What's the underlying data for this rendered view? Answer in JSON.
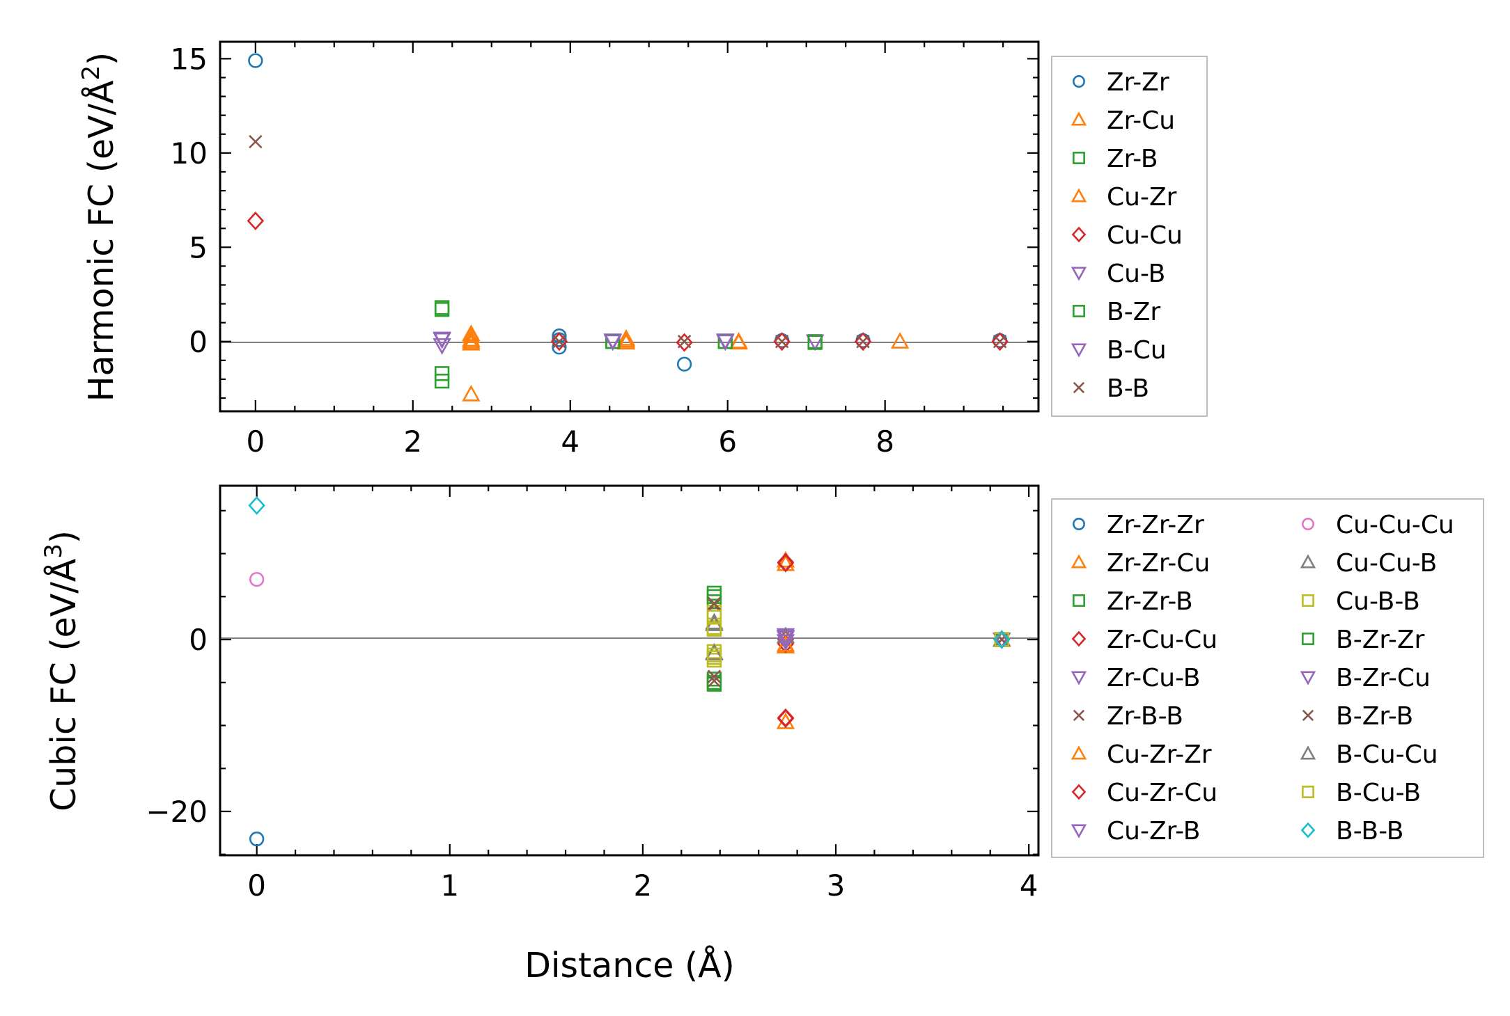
{
  "chart_data": [
    {
      "type": "scatter",
      "ylabel": "Harmonic FC (eV/Å²)",
      "ylabel_main": "Harmonic FC (eV/Å",
      "ylabel_sup": "2",
      "ylabel_tail": ")",
      "xlabel": "",
      "xlim": [
        -0.45,
        9.95
      ],
      "ylim": [
        -3.7,
        15.9
      ],
      "xticks": [
        0,
        2,
        4,
        6,
        8
      ],
      "xtick_labels": [
        "0",
        "2",
        "4",
        "6",
        "8"
      ],
      "yticks": [
        0,
        5,
        10,
        15
      ],
      "ytick_labels": [
        "0",
        "5",
        "10",
        "15"
      ],
      "zero_line": true,
      "legend_position": "outside-right",
      "series": [
        {
          "name": "Zr-Zr",
          "marker": "circle",
          "color": "#1f77b4",
          "points": [
            [
              0,
              14.9
            ],
            [
              3.86,
              0.3
            ],
            [
              3.86,
              -0.3
            ],
            [
              3.86,
              0.1
            ],
            [
              5.45,
              -1.2
            ],
            [
              6.69,
              0.05
            ],
            [
              7.72,
              0.05
            ],
            [
              9.46,
              0.05
            ]
          ]
        },
        {
          "name": "Zr-Cu",
          "marker": "triangle-up",
          "color": "#ff7f0e",
          "points": [
            [
              2.74,
              0.4
            ],
            [
              2.74,
              0.1
            ],
            [
              2.74,
              -0.1
            ],
            [
              2.74,
              -2.8
            ],
            [
              4.71,
              0.15
            ],
            [
              4.71,
              -0.05
            ],
            [
              6.14,
              0.0
            ],
            [
              8.19,
              0.0
            ]
          ]
        },
        {
          "name": "Zr-B",
          "marker": "square",
          "color": "#2ca02c",
          "points": [
            [
              2.37,
              1.8
            ],
            [
              2.37,
              -1.7
            ],
            [
              2.37,
              -2.1
            ],
            [
              4.54,
              0.0
            ],
            [
              5.97,
              0.0
            ],
            [
              7.11,
              0.0
            ]
          ]
        },
        {
          "name": "Cu-Zr",
          "marker": "triangle-up",
          "color": "#ff7f0e",
          "points": [
            [
              2.74,
              0.3
            ],
            [
              2.74,
              0.0
            ],
            [
              4.71,
              0.05
            ],
            [
              6.14,
              -0.05
            ]
          ]
        },
        {
          "name": "Cu-Cu",
          "marker": "diamond",
          "color": "#d62728",
          "points": [
            [
              0,
              6.4
            ],
            [
              3.86,
              0.0
            ],
            [
              5.45,
              -0.05
            ],
            [
              6.69,
              0.0
            ],
            [
              7.72,
              0.0
            ],
            [
              9.46,
              0.0
            ]
          ]
        },
        {
          "name": "Cu-B",
          "marker": "triangle-down",
          "color": "#9467bd",
          "points": [
            [
              2.37,
              0.1
            ],
            [
              2.37,
              -0.2
            ],
            [
              4.54,
              0.05
            ],
            [
              5.97,
              0.05
            ],
            [
              7.11,
              0.0
            ]
          ]
        },
        {
          "name": "B-Zr",
          "marker": "square",
          "color": "#2ca02c",
          "points": [
            [
              2.37,
              1.7
            ],
            [
              4.54,
              0.0
            ],
            [
              5.97,
              0.0
            ],
            [
              7.11,
              -0.05
            ]
          ]
        },
        {
          "name": "B-Cu",
          "marker": "triangle-down",
          "color": "#9467bd",
          "points": [
            [
              2.37,
              0.15
            ],
            [
              4.54,
              0.0
            ],
            [
              5.97,
              0.0
            ]
          ]
        },
        {
          "name": "B-B",
          "marker": "x",
          "color": "#8c564b",
          "points": [
            [
              0,
              10.6
            ],
            [
              3.86,
              0.0
            ],
            [
              5.45,
              0.0
            ],
            [
              6.69,
              0.0
            ],
            [
              7.72,
              0.0
            ],
            [
              9.46,
              0.0
            ]
          ]
        }
      ]
    },
    {
      "type": "scatter",
      "ylabel": "Cubic FC (eV/Å³)",
      "ylabel_main": "Cubic FC (eV/Å",
      "ylabel_sup": "3",
      "ylabel_tail": ")",
      "xlabel": "Distance (Å)",
      "xlim": [
        -0.19,
        4.05
      ],
      "ylim": [
        -25.1,
        17.9
      ],
      "xticks": [
        0,
        1,
        2,
        3,
        4
      ],
      "xtick_labels": [
        "0",
        "1",
        "2",
        "3",
        "4"
      ],
      "yticks": [
        0,
        -20
      ],
      "ytick_labels": [
        "0",
        "−20"
      ],
      "zero_line": true,
      "legend_position": "outside-right",
      "legend_columns": 2,
      "series": [
        {
          "name": "Zr-Zr-Zr",
          "marker": "circle",
          "color": "#1f77b4",
          "points": [
            [
              0,
              -23.2
            ],
            [
              3.86,
              0.0
            ]
          ]
        },
        {
          "name": "Zr-Zr-Cu",
          "marker": "triangle-up",
          "color": "#ff7f0e",
          "points": [
            [
              2.74,
              9.2
            ],
            [
              2.74,
              -0.8
            ],
            [
              2.74,
              -9.6
            ],
            [
              3.86,
              0.0
            ]
          ]
        },
        {
          "name": "Zr-Zr-B",
          "marker": "square",
          "color": "#2ca02c",
          "points": [
            [
              2.37,
              5.4
            ],
            [
              2.37,
              4.4
            ],
            [
              2.37,
              -4.6
            ],
            [
              2.37,
              -5.2
            ],
            [
              3.86,
              0.0
            ]
          ]
        },
        {
          "name": "Zr-Cu-Cu",
          "marker": "diamond",
          "color": "#d62728",
          "points": [
            [
              2.74,
              9.0
            ],
            [
              2.74,
              -0.5
            ],
            [
              2.74,
              -9.1
            ],
            [
              3.86,
              0.0
            ]
          ]
        },
        {
          "name": "Zr-Cu-B",
          "marker": "triangle-down",
          "color": "#9467bd",
          "points": [
            [
              2.74,
              0.3
            ],
            [
              3.86,
              0.0
            ]
          ]
        },
        {
          "name": "Zr-B-B",
          "marker": "x",
          "color": "#8c564b",
          "points": [
            [
              2.37,
              4.0
            ],
            [
              2.37,
              -4.8
            ],
            [
              3.86,
              0.0
            ]
          ]
        },
        {
          "name": "Cu-Zr-Zr",
          "marker": "triangle-up",
          "color": "#ff7f0e",
          "points": [
            [
              2.74,
              8.8
            ],
            [
              2.74,
              -0.6
            ],
            [
              3.86,
              0.0
            ]
          ]
        },
        {
          "name": "Cu-Zr-Cu",
          "marker": "diamond",
          "color": "#d62728",
          "points": [
            [
              2.74,
              8.9
            ],
            [
              2.74,
              0.0
            ],
            [
              2.74,
              -9.2
            ],
            [
              3.86,
              0.0
            ]
          ]
        },
        {
          "name": "Cu-Zr-B",
          "marker": "triangle-down",
          "color": "#9467bd",
          "points": [
            [
              2.74,
              0.2
            ],
            [
              3.86,
              0.0
            ]
          ]
        },
        {
          "name": "Cu-Cu-Cu",
          "marker": "circle",
          "color": "#e377c2",
          "points": [
            [
              0,
              7.0
            ],
            [
              3.86,
              0.0
            ]
          ]
        },
        {
          "name": "Cu-Cu-B",
          "marker": "triangle-up",
          "color": "#7f7f7f",
          "points": [
            [
              2.37,
              2.0
            ],
            [
              2.37,
              -1.5
            ],
            [
              2.74,
              0.4
            ],
            [
              3.86,
              0.0
            ]
          ]
        },
        {
          "name": "Cu-B-B",
          "marker": "square",
          "color": "#bcbd22",
          "points": [
            [
              2.37,
              3.2
            ],
            [
              2.37,
              1.4
            ],
            [
              2.37,
              -1.4
            ],
            [
              2.37,
              -2.4
            ],
            [
              3.86,
              0.0
            ]
          ]
        },
        {
          "name": "B-Zr-Zr",
          "marker": "square",
          "color": "#2ca02c",
          "points": [
            [
              2.37,
              5.0
            ],
            [
              2.37,
              -5.0
            ],
            [
              3.86,
              0.0
            ]
          ]
        },
        {
          "name": "B-Zr-Cu",
          "marker": "triangle-down",
          "color": "#9467bd",
          "points": [
            [
              2.74,
              0.5
            ],
            [
              2.74,
              -0.2
            ],
            [
              3.86,
              0.0
            ]
          ]
        },
        {
          "name": "B-Zr-B",
          "marker": "x",
          "color": "#8c564b",
          "points": [
            [
              2.37,
              4.2
            ],
            [
              2.37,
              -4.3
            ],
            [
              3.86,
              0.0
            ]
          ]
        },
        {
          "name": "B-Cu-Cu",
          "marker": "triangle-up",
          "color": "#7f7f7f",
          "points": [
            [
              2.37,
              1.8
            ],
            [
              2.37,
              -1.6
            ],
            [
              3.86,
              0.0
            ]
          ]
        },
        {
          "name": "B-Cu-B",
          "marker": "square",
          "color": "#bcbd22",
          "points": [
            [
              2.37,
              2.6
            ],
            [
              2.37,
              1.2
            ],
            [
              2.37,
              -1.8
            ],
            [
              2.37,
              -2.1
            ],
            [
              3.86,
              0.0
            ]
          ]
        },
        {
          "name": "B-B-B",
          "marker": "diamond",
          "color": "#17becf",
          "points": [
            [
              0,
              15.6
            ],
            [
              3.86,
              0.0
            ]
          ]
        }
      ]
    }
  ]
}
